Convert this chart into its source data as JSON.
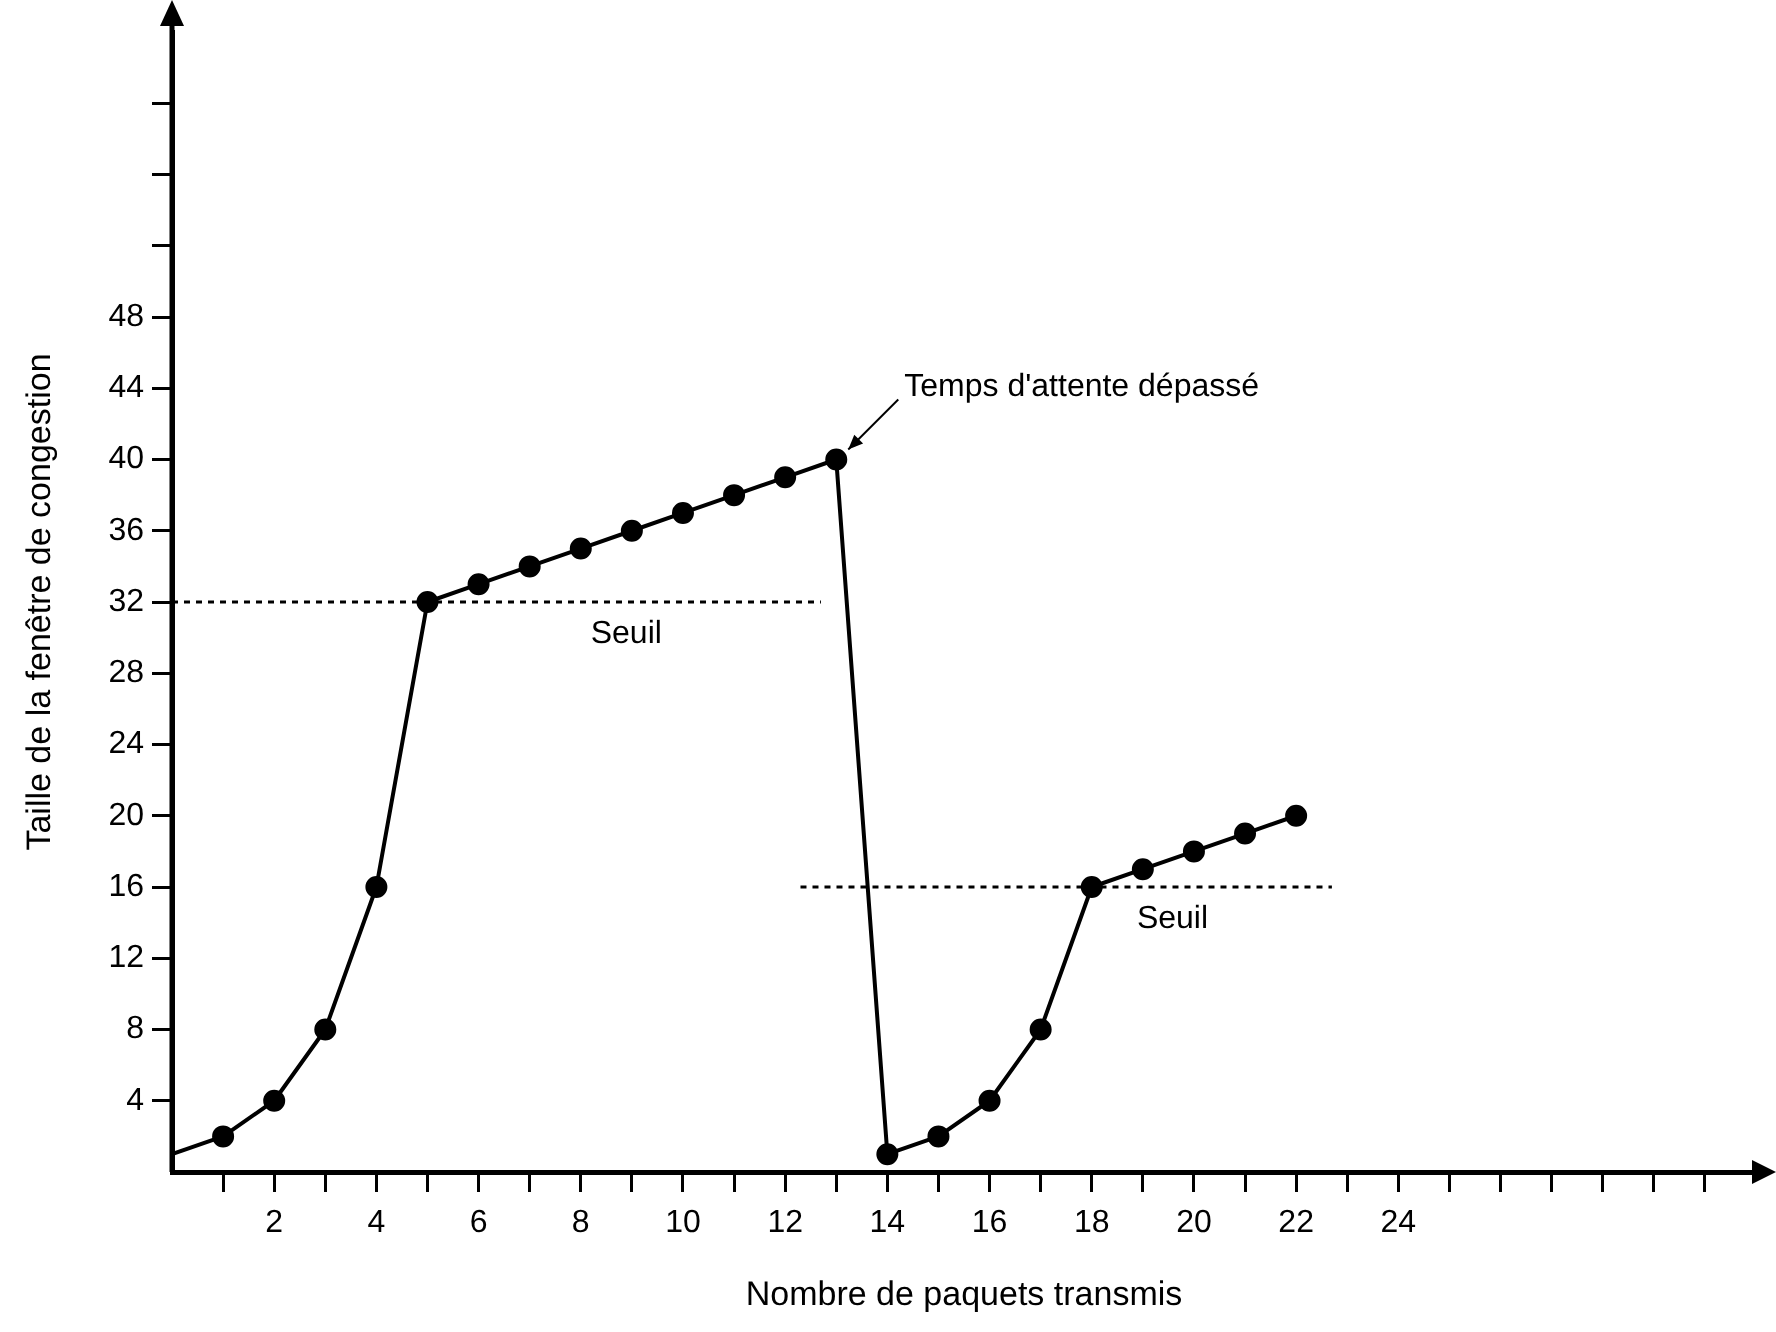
{
  "chart_data": {
    "type": "line",
    "xlabel": "Nombre de paquets transmis",
    "ylabel": "Taille de la fenêtre de congestion",
    "xlim": [
      0,
      31
    ],
    "ylim": [
      0,
      64
    ],
    "xticks": [
      {
        "value": 1,
        "label": null
      },
      2,
      {
        "value": 3,
        "label": null
      },
      4,
      {
        "value": 5,
        "label": null
      },
      6,
      {
        "value": 7,
        "label": null
      },
      8,
      {
        "value": 9,
        "label": null
      },
      10,
      {
        "value": 11,
        "label": null
      },
      12,
      {
        "value": 13,
        "label": null
      },
      14,
      {
        "value": 15,
        "label": null
      },
      16,
      {
        "value": 17,
        "label": null
      },
      18,
      {
        "value": 19,
        "label": null
      },
      20,
      {
        "value": 21,
        "label": null
      },
      22,
      {
        "value": 23,
        "label": null
      },
      24,
      {
        "value": 25,
        "label": null
      },
      {
        "value": 26,
        "label": null
      },
      {
        "value": 27,
        "label": null
      },
      {
        "value": 28,
        "label": null
      },
      {
        "value": 29,
        "label": null
      },
      {
        "value": 30,
        "label": null
      }
    ],
    "yticks": [
      4,
      8,
      12,
      16,
      20,
      24,
      28,
      32,
      36,
      40,
      44,
      48,
      {
        "value": 52,
        "label": null
      },
      {
        "value": 56,
        "label": null
      },
      {
        "value": 60,
        "label": null
      }
    ],
    "grid": false,
    "legend": false,
    "marker": "circle",
    "line_style": "solid",
    "series": [
      {
        "color": "#000000",
        "x": [
          1,
          2,
          3,
          4,
          5,
          6,
          7,
          8,
          9,
          10,
          11,
          12,
          13,
          14,
          15,
          16,
          17,
          18,
          19,
          20,
          21,
          22
        ],
        "values": [
          2,
          4,
          8,
          16,
          32,
          33,
          34,
          35,
          36,
          37,
          38,
          39,
          40,
          1,
          2,
          4,
          8,
          16,
          17,
          18,
          19,
          20
        ]
      },
      {
        "color": "#000000",
        "marker": "none",
        "x": [
          0,
          1
        ],
        "values": [
          1,
          2
        ]
      },
      {
        "name": "Seuil",
        "color": "#000000",
        "marker": "none",
        "line_style": "dotted",
        "x": [
          0,
          12.7
        ],
        "values": [
          32,
          32
        ]
      },
      {
        "name": "Seuil",
        "color": "#000000",
        "marker": "none",
        "line_style": "dotted",
        "x": [
          12.3,
          22.7
        ],
        "values": [
          16,
          16
        ]
      }
    ],
    "annotations": [
      {
        "text": "Temps d'attente dépassé",
        "x": 13,
        "y": 40
      }
    ]
  }
}
